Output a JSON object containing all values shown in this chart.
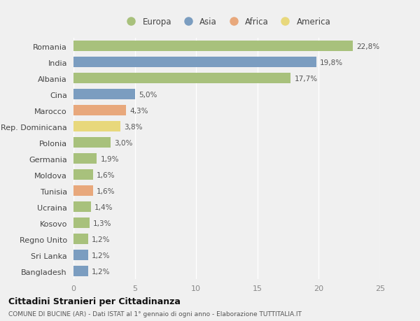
{
  "countries": [
    "Romania",
    "India",
    "Albania",
    "Cina",
    "Marocco",
    "Rep. Dominicana",
    "Polonia",
    "Germania",
    "Moldova",
    "Tunisia",
    "Ucraina",
    "Kosovo",
    "Regno Unito",
    "Sri Lanka",
    "Bangladesh"
  ],
  "values": [
    22.8,
    19.8,
    17.7,
    5.0,
    4.3,
    3.8,
    3.0,
    1.9,
    1.6,
    1.6,
    1.4,
    1.3,
    1.2,
    1.2,
    1.2
  ],
  "labels": [
    "22,8%",
    "19,8%",
    "17,7%",
    "5,0%",
    "4,3%",
    "3,8%",
    "3,0%",
    "1,9%",
    "1,6%",
    "1,6%",
    "1,4%",
    "1,3%",
    "1,2%",
    "1,2%",
    "1,2%"
  ],
  "regions": [
    "Europa",
    "Asia",
    "Europa",
    "Asia",
    "Africa",
    "America",
    "Europa",
    "Europa",
    "Europa",
    "Africa",
    "Europa",
    "Europa",
    "Europa",
    "Asia",
    "Asia"
  ],
  "region_colors": {
    "Europa": "#a8c17c",
    "Asia": "#7b9dc0",
    "Africa": "#e8a87c",
    "America": "#e8d87c"
  },
  "legend_order": [
    "Europa",
    "Asia",
    "Africa",
    "America"
  ],
  "bg_color": "#f0f0f0",
  "xlim": [
    0,
    25
  ],
  "xticks": [
    0,
    5,
    10,
    15,
    20,
    25
  ],
  "title": "Cittadini Stranieri per Cittadinanza",
  "subtitle": "COMUNE DI BUCINE (AR) - Dati ISTAT al 1° gennaio di ogni anno - Elaborazione TUTTITALIA.IT"
}
